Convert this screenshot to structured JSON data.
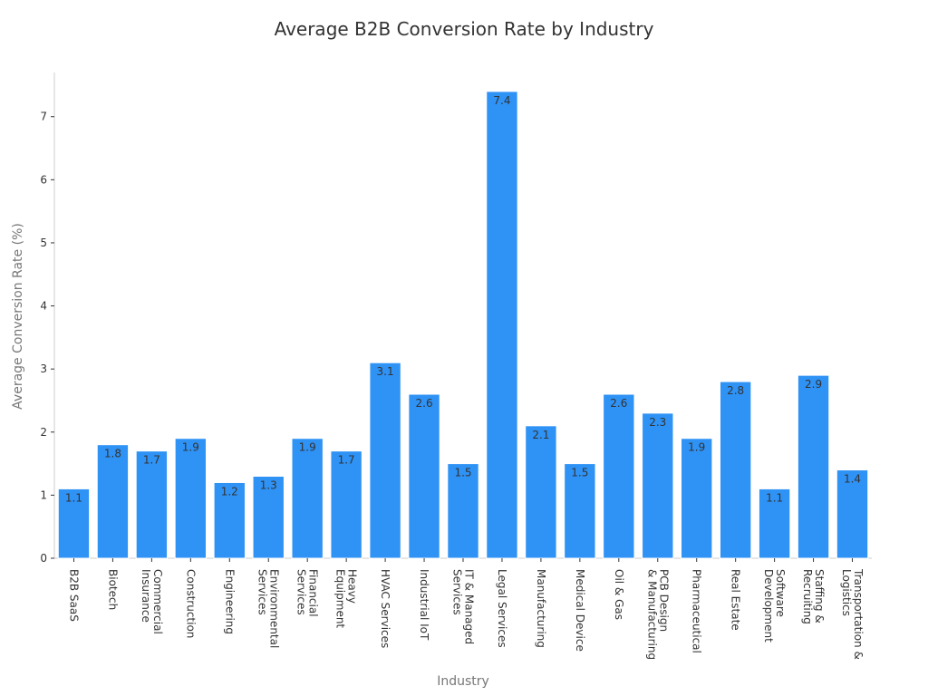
{
  "chart_data": {
    "type": "bar",
    "title": "Average B2B Conversion Rate by Industry",
    "xlabel": "Industry",
    "ylabel": "Average Conversion Rate (%)",
    "ylim": [
      0,
      7.7
    ],
    "yticks": [
      0,
      1,
      2,
      3,
      4,
      5,
      6,
      7
    ],
    "grid": false,
    "bar_color": "#2f92f5",
    "bar_edge_color": "#ffffff",
    "categories": [
      [
        "B2B SaaS"
      ],
      [
        "Biotech"
      ],
      [
        "Commercial",
        "Insurance"
      ],
      [
        "Construction"
      ],
      [
        "Engineering"
      ],
      [
        "Environmental",
        "Services"
      ],
      [
        "Financial",
        "Services"
      ],
      [
        "Heavy",
        "Equipment"
      ],
      [
        "HVAC Services"
      ],
      [
        "Industrial IoT"
      ],
      [
        "IT & Managed",
        "Services"
      ],
      [
        "Legal Services"
      ],
      [
        "Manufacturing"
      ],
      [
        "Medical Device"
      ],
      [
        "Oil & Gas"
      ],
      [
        "PCB Design",
        "& Manufacturing"
      ],
      [
        "Pharmaceutical"
      ],
      [
        "Real Estate"
      ],
      [
        "Software",
        "Development"
      ],
      [
        "Staffing &",
        "Recruiting"
      ],
      [
        "Transportation &",
        "Logistics"
      ]
    ],
    "values": [
      1.1,
      1.8,
      1.7,
      1.9,
      1.2,
      1.3,
      1.9,
      1.7,
      3.1,
      2.6,
      1.5,
      7.4,
      2.1,
      1.5,
      2.6,
      2.3,
      1.9,
      2.8,
      1.1,
      2.9,
      1.4
    ],
    "data_labels": [
      "1.1",
      "1.8",
      "1.7",
      "1.9",
      "1.2",
      "1.3",
      "1.9",
      "1.7",
      "3.1",
      "2.6",
      "1.5",
      "7.4",
      "2.1",
      "1.5",
      "2.6",
      "2.3",
      "1.9",
      "2.8",
      "1.1",
      "2.9",
      "1.4"
    ]
  }
}
